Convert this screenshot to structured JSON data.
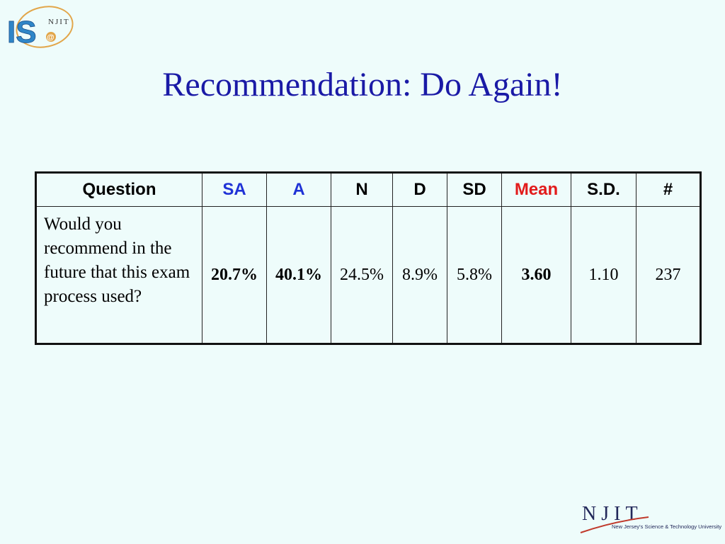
{
  "logo": {
    "letters": "IS",
    "small_text": "NJIT",
    "at_symbol": "@"
  },
  "slide": {
    "title": "Recommendation: Do Again!"
  },
  "table": {
    "headers": [
      "Question",
      "SA",
      "A",
      "N",
      "D",
      "SD",
      "Mean",
      "S.D.",
      "#"
    ],
    "row": {
      "question": "Would you recommend in the future that this exam process used?",
      "sa": "20.7%",
      "a": "40.1%",
      "n": "24.5%",
      "d": "8.9%",
      "sd": "5.8%",
      "mean": "3.60",
      "std_dev": "1.10",
      "count": "237"
    }
  },
  "footer_logo": {
    "name": "NJIT",
    "tagline": "New Jersey's Science & Technology University"
  },
  "colors": {
    "background": "#eefcfb",
    "title": "#1a1aa6",
    "blue_highlight": "#1f32d6",
    "red_highlight": "#e21b1b"
  }
}
